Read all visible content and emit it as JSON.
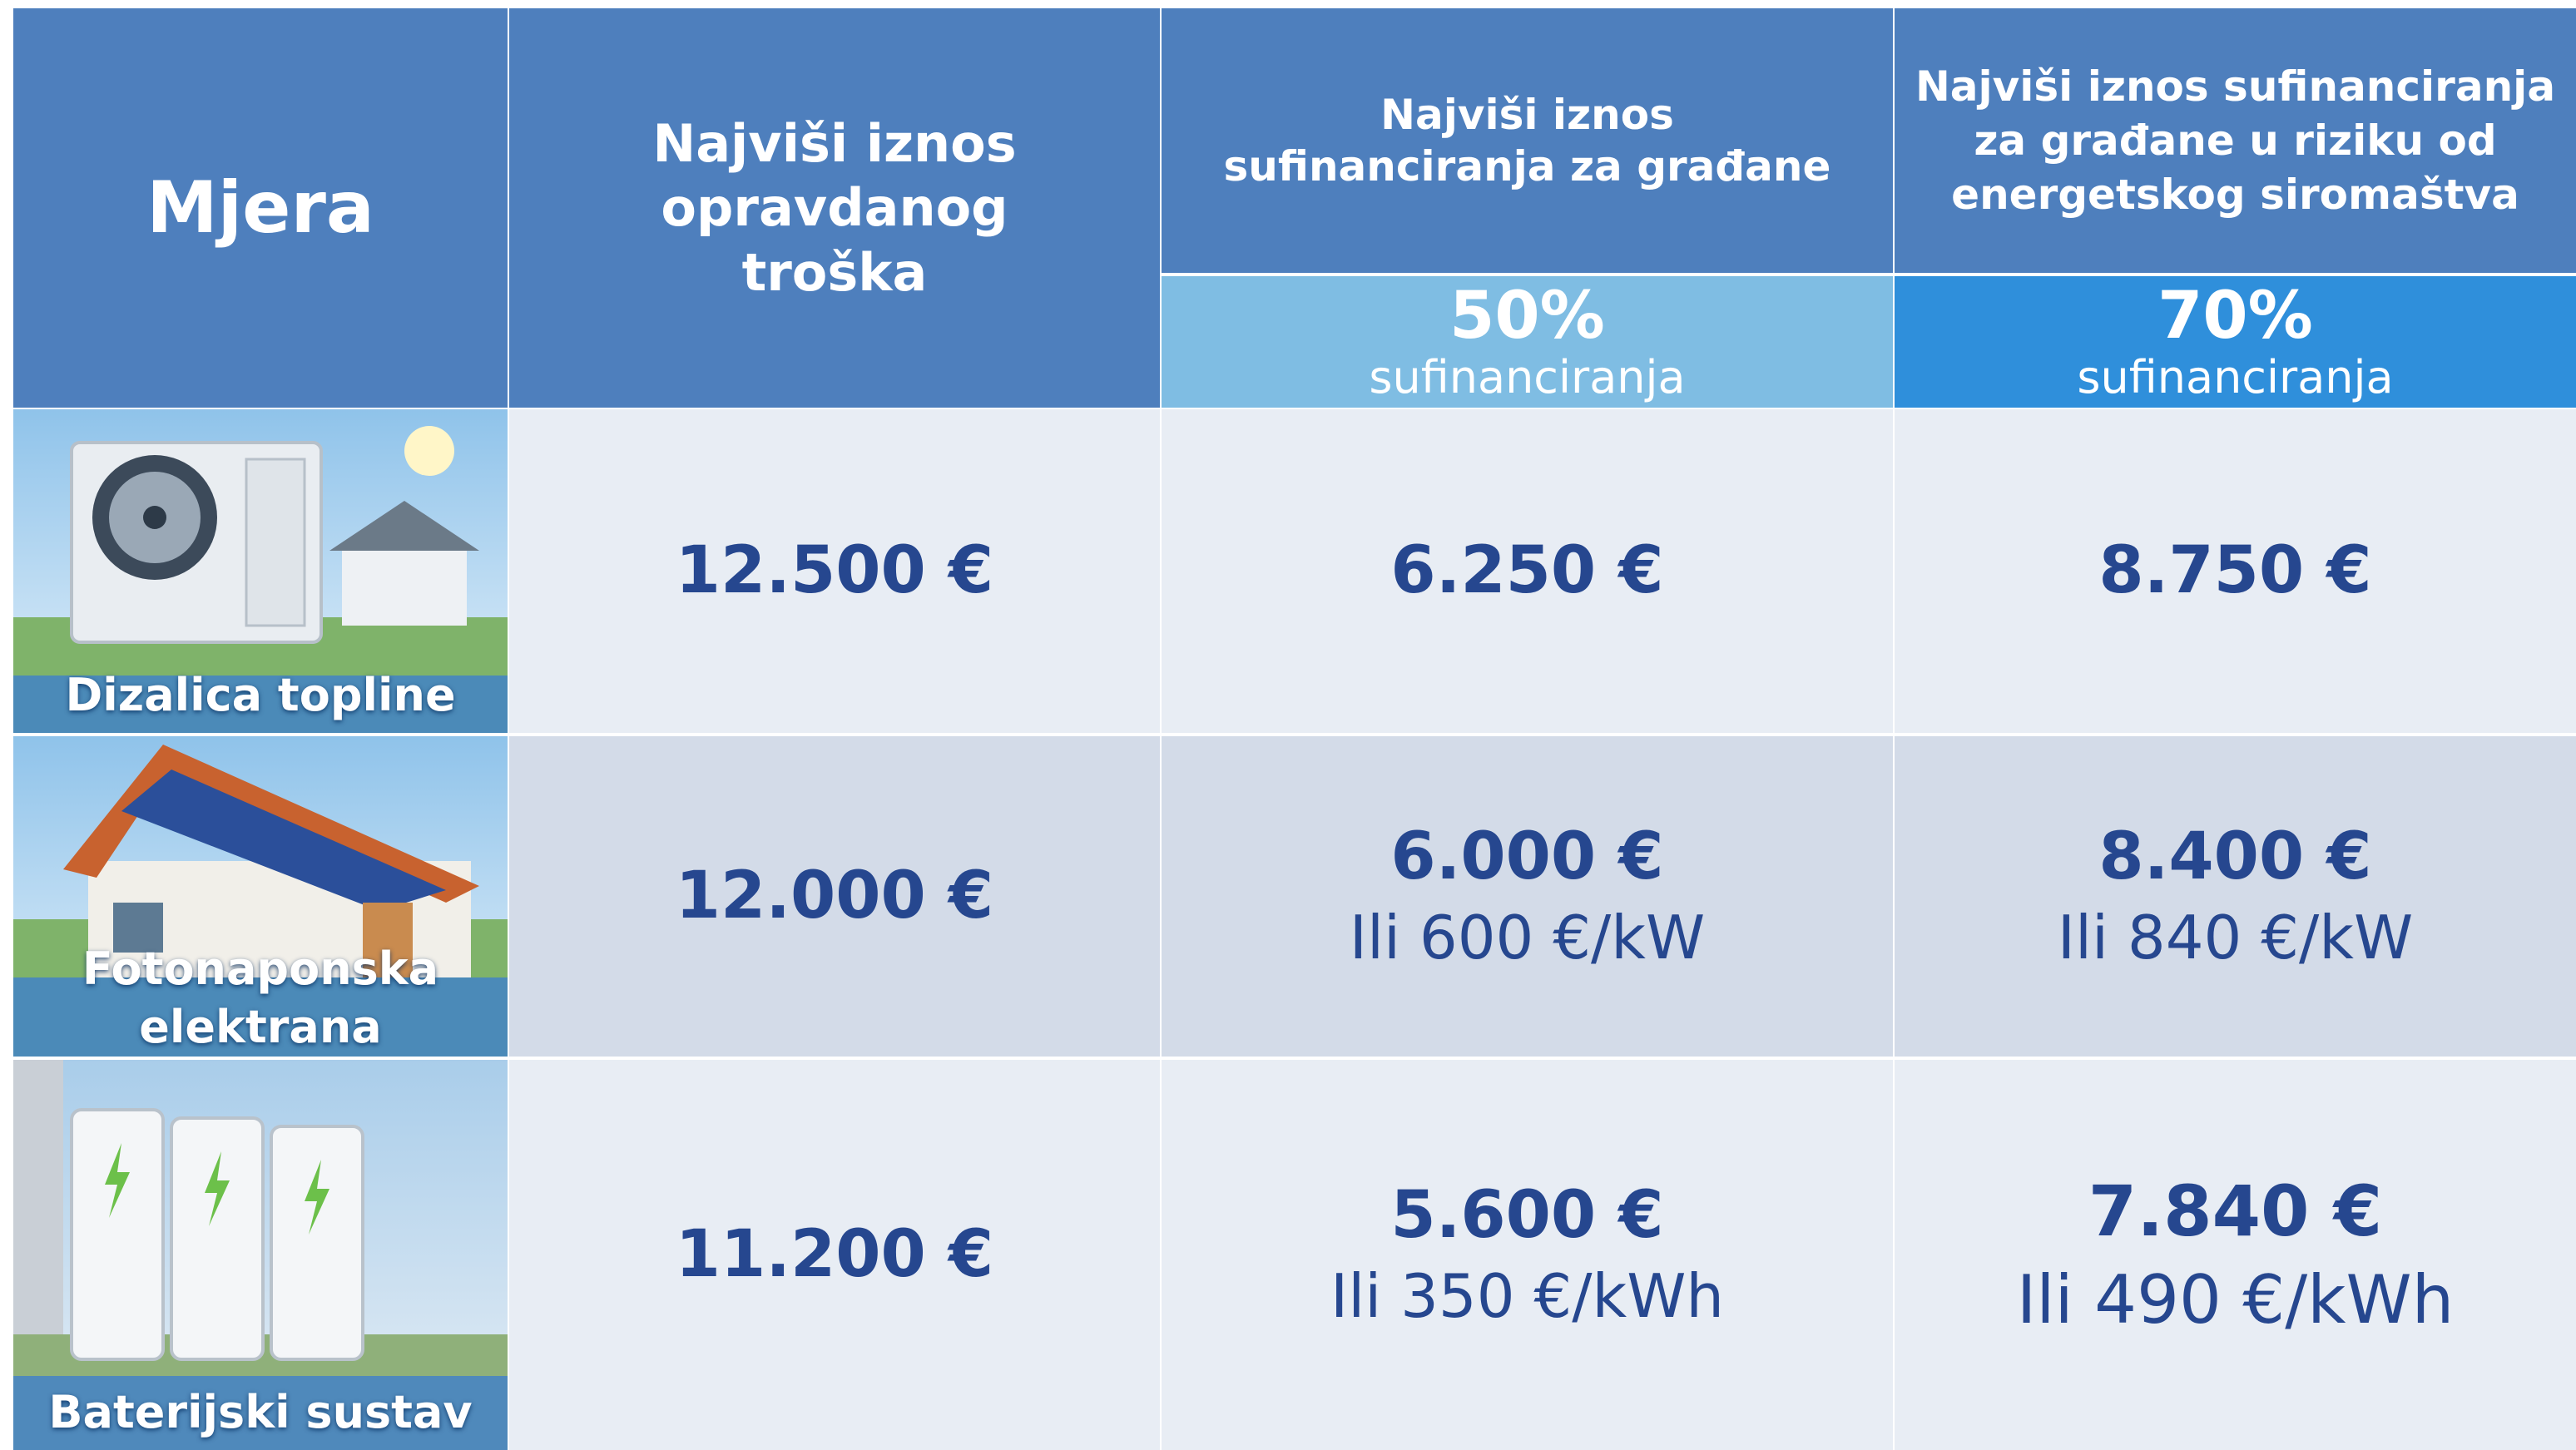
{
  "table": {
    "header": {
      "measure": "Mjera",
      "cost": "Najviši iznos opravdanog troška",
      "citizens": "Najviši iznos sufinanciranja za građane",
      "poverty": "Najviši iznos sufinanciranja za građane u riziku od energetskog siromaštva"
    },
    "subheader": [
      {
        "percent": "50%",
        "label": "sufinanciranja"
      },
      {
        "percent": "70%",
        "label": "sufinanciranja"
      }
    ],
    "rows": [
      {
        "measure": "Dizalica topline",
        "cost": "12.500 €",
        "citizens": [
          "6.250 €"
        ],
        "poverty": [
          "8.750 €"
        ]
      },
      {
        "measure": "Fotonaponska elektrana",
        "cost": "12.000 €",
        "citizens": [
          "6.000 €",
          "Ili 600 €/kW"
        ],
        "poverty": [
          "8.400 €",
          "Ili 840 €/kW"
        ]
      },
      {
        "measure": "Baterijski sustav",
        "cost": "11.200 €",
        "citizens": [
          "5.600 €",
          "Ili 350 €/kWh"
        ],
        "poverty": [
          "7.840 €",
          "Ili 490 €/kWh"
        ]
      }
    ]
  }
}
